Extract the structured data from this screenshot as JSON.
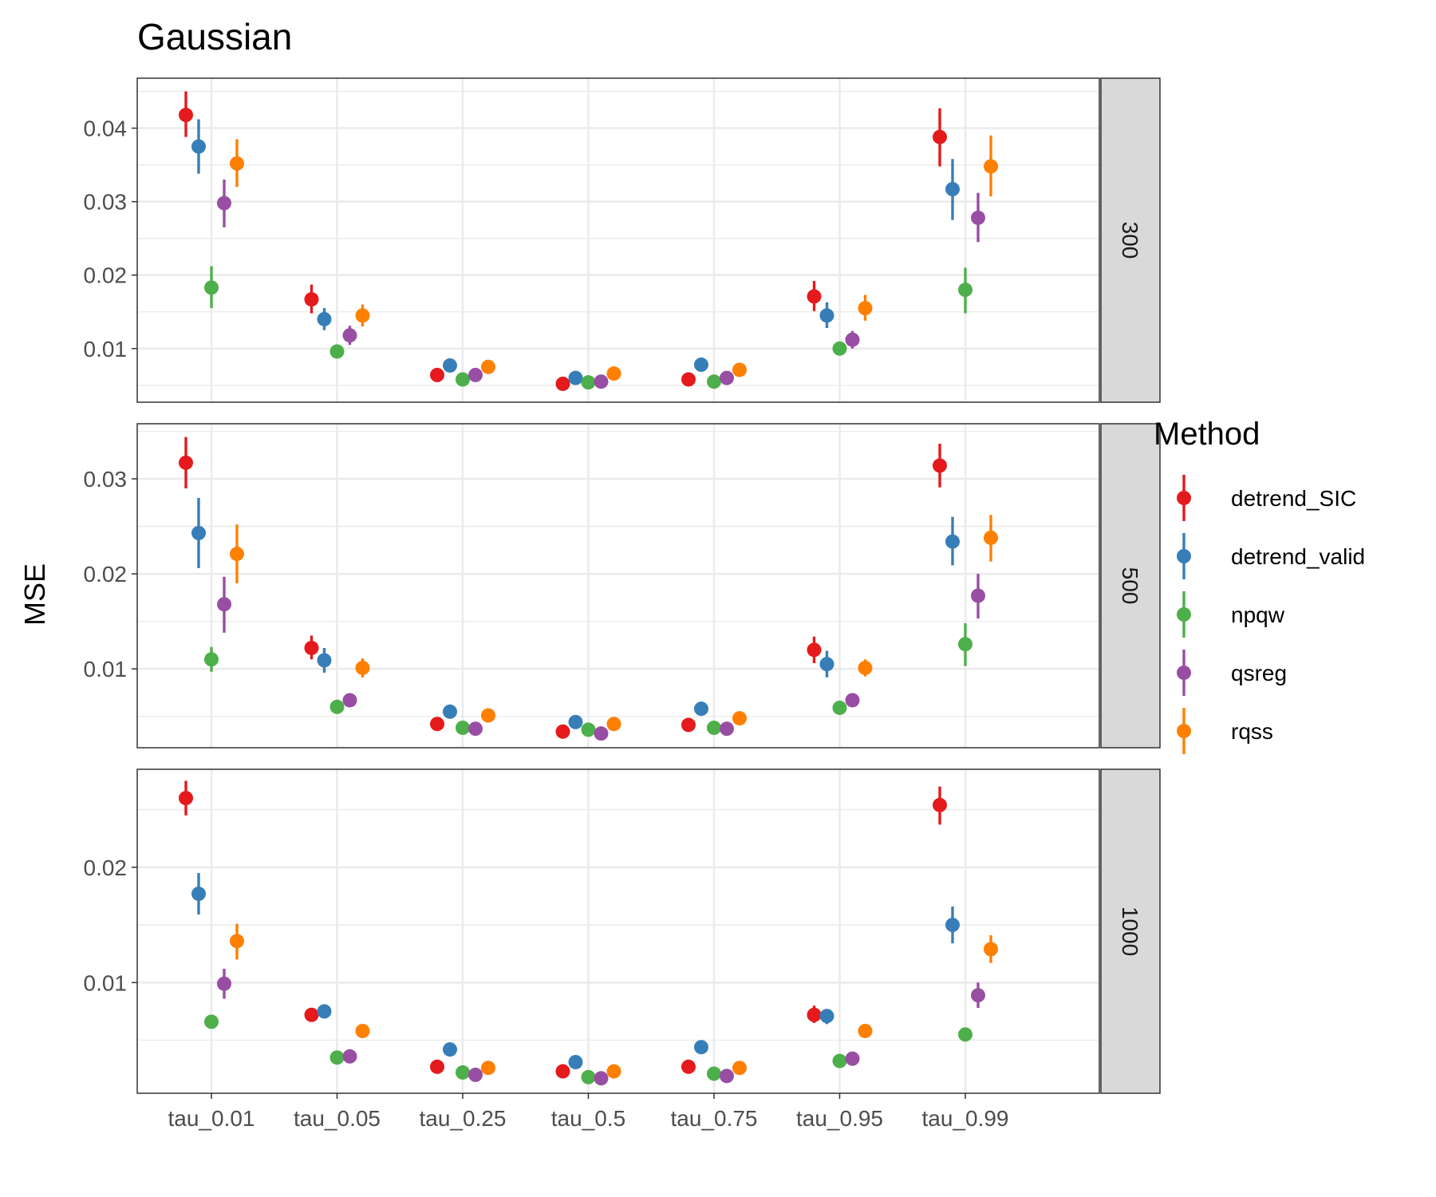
{
  "chart_data": {
    "type": "scatter",
    "title": "Gaussian",
    "xlabel": "",
    "ylabel": "MSE",
    "categories": [
      "tau_0.01",
      "tau_0.05",
      "tau_0.25",
      "tau_0.5",
      "tau_0.75",
      "tau_0.95",
      "tau_0.99"
    ],
    "legend": {
      "title": "Method",
      "position": "right",
      "entries": [
        {
          "name": "detrend_SIC",
          "color": "#e41a1c"
        },
        {
          "name": "detrend_valid",
          "color": "#377eb8"
        },
        {
          "name": "npqw",
          "color": "#4daf4a"
        },
        {
          "name": "qsreg",
          "color": "#984ea3"
        },
        {
          "name": "rqss",
          "color": "#ff7f00"
        }
      ]
    },
    "grid": true,
    "panels": [
      {
        "strip_label": "300",
        "ylim": [
          0.0027,
          0.0468
        ],
        "yticks": [
          0.01,
          0.02,
          0.03,
          0.04
        ],
        "ytick_labels": [
          "0.01",
          "0.02",
          "0.03",
          "0.04"
        ],
        "series": [
          {
            "name": "detrend_SIC",
            "values": [
              0.0418,
              0.0167,
              0.0064,
              0.0052,
              0.0058,
              0.0171,
              0.0388
            ],
            "lower": [
              0.0388,
              0.0148,
              0.0058,
              0.0047,
              0.0053,
              0.0151,
              0.0348
            ],
            "upper": [
              0.045,
              0.0187,
              0.0071,
              0.0057,
              0.0064,
              0.0192,
              0.0427
            ]
          },
          {
            "name": "detrend_valid",
            "values": [
              0.0375,
              0.014,
              0.0077,
              0.006,
              0.0078,
              0.0145,
              0.0317
            ],
            "lower": [
              0.0338,
              0.0125,
              0.007,
              0.0054,
              0.0071,
              0.0128,
              0.0275
            ],
            "upper": [
              0.0412,
              0.0155,
              0.0084,
              0.0066,
              0.0085,
              0.0163,
              0.0358
            ]
          },
          {
            "name": "npqw",
            "values": [
              0.0183,
              0.0096,
              0.0058,
              0.0054,
              0.0055,
              0.01,
              0.018
            ],
            "lower": [
              0.0155,
              0.0088,
              0.0053,
              0.0049,
              0.005,
              0.0092,
              0.0148
            ],
            "upper": [
              0.0212,
              0.0104,
              0.0063,
              0.0059,
              0.006,
              0.0108,
              0.021
            ]
          },
          {
            "name": "qsreg",
            "values": [
              0.0298,
              0.0118,
              0.0064,
              0.0055,
              0.006,
              0.0112,
              0.0278
            ],
            "lower": [
              0.0265,
              0.0105,
              0.0058,
              0.005,
              0.0055,
              0.01,
              0.0245
            ],
            "upper": [
              0.033,
              0.0131,
              0.007,
              0.006,
              0.0065,
              0.0124,
              0.0312
            ]
          },
          {
            "name": "rqss",
            "values": [
              0.0352,
              0.0145,
              0.0075,
              0.0066,
              0.0071,
              0.0155,
              0.0348
            ],
            "lower": [
              0.032,
              0.013,
              0.0068,
              0.006,
              0.0064,
              0.0138,
              0.0307
            ],
            "upper": [
              0.0385,
              0.016,
              0.0082,
              0.0072,
              0.0078,
              0.0173,
              0.039
            ]
          }
        ]
      },
      {
        "strip_label": "500",
        "ylim": [
          0.0017,
          0.0358
        ],
        "yticks": [
          0.01,
          0.02,
          0.03
        ],
        "ytick_labels": [
          "0.01",
          "0.02",
          "0.03"
        ],
        "series": [
          {
            "name": "detrend_SIC",
            "values": [
              0.0317,
              0.0122,
              0.0042,
              0.0034,
              0.0041,
              0.012,
              0.0314
            ],
            "lower": [
              0.029,
              0.011,
              0.0037,
              0.003,
              0.0036,
              0.0106,
              0.0291
            ],
            "upper": [
              0.0344,
              0.0135,
              0.0048,
              0.0038,
              0.0046,
              0.0134,
              0.0337
            ]
          },
          {
            "name": "detrend_valid",
            "values": [
              0.0243,
              0.0109,
              0.0055,
              0.0044,
              0.0058,
              0.0105,
              0.0234
            ],
            "lower": [
              0.0206,
              0.0096,
              0.005,
              0.0039,
              0.0052,
              0.0091,
              0.0209
            ],
            "upper": [
              0.028,
              0.0122,
              0.006,
              0.0049,
              0.0064,
              0.0119,
              0.026
            ]
          },
          {
            "name": "npqw",
            "values": [
              0.011,
              0.006,
              0.0038,
              0.0036,
              0.0038,
              0.0059,
              0.0126
            ],
            "lower": [
              0.0097,
              0.0055,
              0.0034,
              0.0032,
              0.0034,
              0.0054,
              0.0103
            ],
            "upper": [
              0.0123,
              0.0065,
              0.0042,
              0.004,
              0.0042,
              0.0064,
              0.0148
            ]
          },
          {
            "name": "qsreg",
            "values": [
              0.0168,
              0.0067,
              0.0037,
              0.0032,
              0.0037,
              0.0067,
              0.0177
            ],
            "lower": [
              0.0138,
              0.0062,
              0.0033,
              0.0028,
              0.0033,
              0.0062,
              0.0153
            ],
            "upper": [
              0.0197,
              0.0072,
              0.0041,
              0.0036,
              0.0041,
              0.0072,
              0.02
            ]
          },
          {
            "name": "rqss",
            "values": [
              0.0221,
              0.0101,
              0.0051,
              0.0042,
              0.0048,
              0.0101,
              0.0238
            ],
            "lower": [
              0.019,
              0.0091,
              0.0046,
              0.0037,
              0.0043,
              0.0092,
              0.0213
            ],
            "upper": [
              0.0252,
              0.0111,
              0.0056,
              0.0047,
              0.0053,
              0.011,
              0.0262
            ]
          }
        ]
      },
      {
        "strip_label": "1000",
        "ylim": [
          0.0004,
          0.0285
        ],
        "yticks": [
          0.01,
          0.02
        ],
        "ytick_labels": [
          "0.01",
          "0.02"
        ],
        "series": [
          {
            "name": "detrend_SIC",
            "values": [
              0.026,
              0.0072,
              0.0027,
              0.0023,
              0.0027,
              0.0072,
              0.0254
            ],
            "lower": [
              0.0245,
              0.0066,
              0.0023,
              0.002,
              0.0023,
              0.0065,
              0.0237
            ],
            "upper": [
              0.0275,
              0.0078,
              0.0031,
              0.0026,
              0.0031,
              0.008,
              0.027
            ]
          },
          {
            "name": "detrend_valid",
            "values": [
              0.0177,
              0.0075,
              0.0042,
              0.0031,
              0.0044,
              0.0071,
              0.015
            ],
            "lower": [
              0.0159,
              0.0069,
              0.0038,
              0.0027,
              0.004,
              0.0064,
              0.0134
            ],
            "upper": [
              0.0195,
              0.0081,
              0.0046,
              0.0035,
              0.0048,
              0.0077,
              0.0166
            ]
          },
          {
            "name": "npqw",
            "values": [
              0.0066,
              0.0035,
              0.0022,
              0.0018,
              0.0021,
              0.0032,
              0.0055
            ],
            "lower": [
              0.0062,
              0.0031,
              0.0019,
              0.0015,
              0.0018,
              0.0029,
              0.0051
            ],
            "upper": [
              0.007,
              0.0039,
              0.0025,
              0.0021,
              0.0024,
              0.0035,
              0.0059
            ]
          },
          {
            "name": "qsreg",
            "values": [
              0.0099,
              0.0036,
              0.002,
              0.0017,
              0.0019,
              0.0034,
              0.0089
            ],
            "lower": [
              0.0086,
              0.0032,
              0.0017,
              0.0014,
              0.0016,
              0.0031,
              0.0078
            ],
            "upper": [
              0.0112,
              0.004,
              0.0023,
              0.002,
              0.0022,
              0.0037,
              0.01
            ]
          },
          {
            "name": "rqss",
            "values": [
              0.0136,
              0.0058,
              0.0026,
              0.0023,
              0.0026,
              0.0058,
              0.0129
            ],
            "lower": [
              0.012,
              0.0054,
              0.0023,
              0.002,
              0.0023,
              0.0054,
              0.0117
            ],
            "upper": [
              0.0151,
              0.0062,
              0.0029,
              0.0026,
              0.0029,
              0.0062,
              0.0141
            ]
          }
        ]
      }
    ]
  }
}
